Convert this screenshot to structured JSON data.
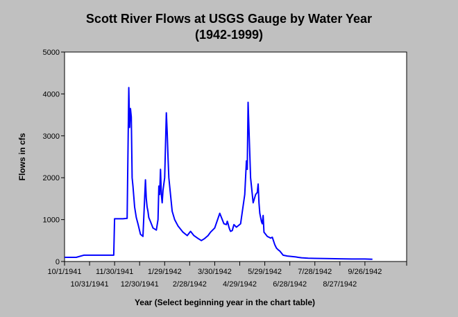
{
  "chart_data": {
    "type": "line",
    "title": "Scott River Flows at USGS Gauge by Water Year",
    "subtitle": "(1942-1999)",
    "xlabel": "Year (Select beginning year in the chart table)",
    "ylabel": "Flows in cfs",
    "ylim": [
      0,
      5000
    ],
    "yticks": [
      0,
      1000,
      2000,
      3000,
      4000,
      5000
    ],
    "grid": false,
    "legend": "none",
    "series_color": "#0000ff",
    "background_color": "#c0c0c0",
    "plot_background": "#ffffff",
    "xlim": [
      "1941-10-01",
      "1942-11-15"
    ],
    "xticks": [
      {
        "date": "1941-10-01",
        "label": "10/1/1941"
      },
      {
        "date": "1941-10-31",
        "label": "10/31/1941"
      },
      {
        "date": "1941-11-30",
        "label": "11/30/1941"
      },
      {
        "date": "1941-12-30",
        "label": "12/30/1941"
      },
      {
        "date": "1942-01-29",
        "label": "1/29/1942"
      },
      {
        "date": "1942-02-28",
        "label": "2/28/1942"
      },
      {
        "date": "1942-03-30",
        "label": "3/30/1942"
      },
      {
        "date": "1942-04-29",
        "label": "4/29/1942"
      },
      {
        "date": "1942-05-29",
        "label": "5/29/1942"
      },
      {
        "date": "1942-06-28",
        "label": "6/28/1942"
      },
      {
        "date": "1942-07-28",
        "label": "7/28/1942"
      },
      {
        "date": "1942-08-27",
        "label": "8/27/1942"
      },
      {
        "date": "1942-09-26",
        "label": "9/26/1942"
      }
    ],
    "x": [
      "1941-10-01",
      "1941-10-15",
      "1941-10-24",
      "1941-11-10",
      "1941-11-29",
      "1941-11-30",
      "1941-12-05",
      "1941-12-10",
      "1941-12-15",
      "1941-12-17",
      "1941-12-18",
      "1941-12-19",
      "1941-12-20",
      "1941-12-21",
      "1941-12-22",
      "1941-12-24",
      "1941-12-26",
      "1941-12-28",
      "1941-12-31",
      "1942-01-03",
      "1942-01-06",
      "1942-01-07",
      "1942-01-08",
      "1942-01-09",
      "1942-01-10",
      "1942-01-12",
      "1942-01-15",
      "1942-01-19",
      "1942-01-21",
      "1942-01-22",
      "1942-01-23",
      "1942-01-24",
      "1942-01-25",
      "1942-01-26",
      "1942-01-27",
      "1942-01-29",
      "1942-01-31",
      "1942-02-01",
      "1942-02-02",
      "1942-02-03",
      "1942-02-05",
      "1942-02-07",
      "1942-02-10",
      "1942-02-14",
      "1942-02-20",
      "1942-02-25",
      "1942-03-01",
      "1942-03-05",
      "1942-03-10",
      "1942-03-14",
      "1942-03-18",
      "1942-03-22",
      "1942-03-25",
      "1942-03-30",
      "1942-04-05",
      "1942-04-10",
      "1942-04-13",
      "1942-04-14",
      "1942-04-15",
      "1942-04-16",
      "1942-04-17",
      "1942-04-18",
      "1942-04-20",
      "1942-04-22",
      "1942-04-25",
      "1942-04-30",
      "1942-05-05",
      "1942-05-07",
      "1942-05-08",
      "1942-05-09",
      "1942-05-12",
      "1942-05-15",
      "1942-05-18",
      "1942-05-20",
      "1942-05-21",
      "1942-05-22",
      "1942-05-23",
      "1942-05-24",
      "1942-05-25",
      "1942-05-26",
      "1942-05-27",
      "1942-05-28",
      "1942-05-30",
      "1942-06-01",
      "1942-06-03",
      "1942-06-05",
      "1942-06-07",
      "1942-06-08",
      "1942-06-10",
      "1942-06-12",
      "1942-06-14",
      "1942-06-16",
      "1942-06-18",
      "1942-06-20",
      "1942-06-25",
      "1942-06-30",
      "1942-07-05",
      "1942-07-08",
      "1942-07-12",
      "1942-07-20",
      "1942-07-28",
      "1942-08-10",
      "1942-08-27",
      "1942-09-10",
      "1942-09-26",
      "1942-10-05"
    ],
    "y": [
      100,
      100,
      150,
      150,
      150,
      1020,
      1020,
      1020,
      1030,
      4150,
      3200,
      3650,
      3450,
      2000,
      1800,
      1300,
      1050,
      900,
      650,
      600,
      1950,
      1500,
      1300,
      1200,
      1050,
      950,
      800,
      750,
      1000,
      1800,
      1600,
      2200,
      1600,
      1400,
      1700,
      2000,
      3550,
      3100,
      2500,
      2000,
      1600,
      1200,
      1000,
      850,
      700,
      620,
      720,
      620,
      550,
      500,
      550,
      620,
      700,
      800,
      1150,
      900,
      880,
      960,
      900,
      820,
      760,
      720,
      740,
      880,
      820,
      900,
      1600,
      2400,
      2200,
      3800,
      2000,
      1400,
      1600,
      1650,
      1850,
      1400,
      1150,
      1050,
      950,
      900,
      1100,
      700,
      650,
      600,
      580,
      560,
      580,
      520,
      400,
      320,
      280,
      250,
      200,
      150,
      130,
      120,
      110,
      100,
      90,
      80,
      75,
      70,
      65,
      60,
      60,
      55
    ]
  }
}
